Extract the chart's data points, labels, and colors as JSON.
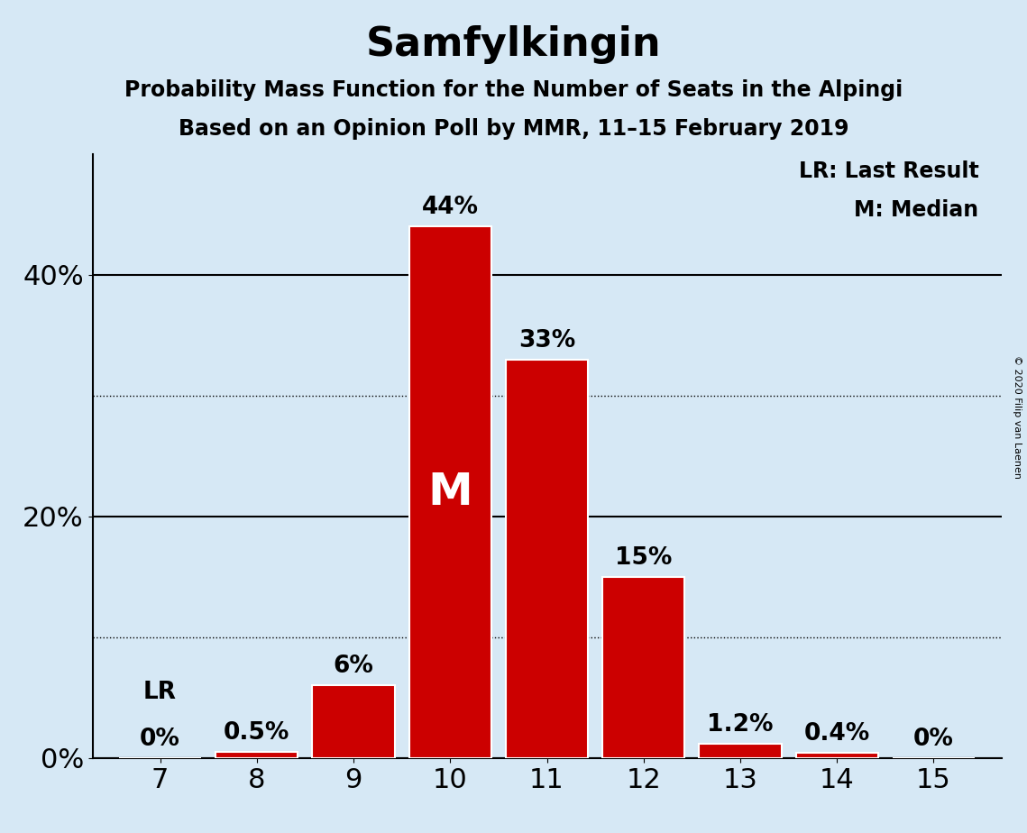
{
  "title": "Samfylkingin",
  "subtitle1": "Probability Mass Function for the Number of Seats in the Alpingi",
  "subtitle2": "Based on an Opinion Poll by MMR, 11–15 February 2019",
  "copyright": "© 2020 Filip van Laenen",
  "seats": [
    7,
    8,
    9,
    10,
    11,
    12,
    13,
    14,
    15
  ],
  "probabilities": [
    0.0,
    0.5,
    6.0,
    44.0,
    33.0,
    15.0,
    1.2,
    0.4,
    0.0
  ],
  "bar_color": "#cc0000",
  "bar_edge_color": "#ffffff",
  "background_color": "#d6e8f5",
  "median_seat": 10,
  "last_result_seat": 7,
  "yticks_shown": [
    0,
    20,
    40
  ],
  "dotted_lines": [
    10,
    30
  ],
  "solid_lines": [
    20,
    40
  ],
  "ylim": [
    0,
    50
  ],
  "xlim_left": 6.3,
  "xlim_right": 15.7,
  "ylabel_fontsize": 22,
  "xlabel_fontsize": 22,
  "title_fontsize": 32,
  "subtitle_fontsize": 17,
  "bar_label_fontsize": 19,
  "legend_fontsize": 17,
  "median_label_fontsize": 36,
  "lr_label_fontsize": 19,
  "copyright_fontsize": 8
}
